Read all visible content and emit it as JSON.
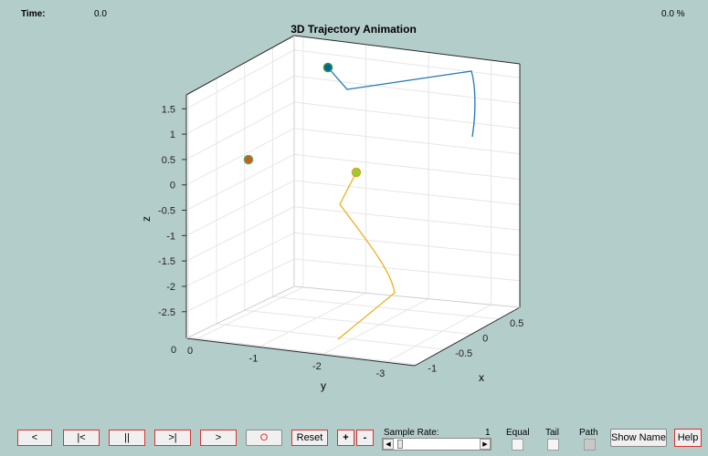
{
  "header": {
    "time_label": "Time:",
    "time_value": "0.0",
    "percent": "0.0 %"
  },
  "chart_data": {
    "type": "line",
    "title": "3D Trajectory Animation",
    "xlabel": "x",
    "ylabel": "y",
    "zlabel": "z",
    "x_ticks": [
      "0.5",
      "0",
      "-0.5",
      "-1"
    ],
    "y_ticks": [
      "0",
      "-1",
      "-2",
      "-3"
    ],
    "z_ticks": [
      "1.5",
      "1",
      "0.5",
      "0",
      "-0.5",
      "-1",
      "-1.5",
      "-2",
      "-2.5"
    ],
    "grid": true,
    "series": [
      {
        "color": "#1f77b4",
        "marker_color": "#0a5fa8"
      },
      {
        "color": "#edb120",
        "marker_color": "#9acd32"
      },
      {
        "color": "#d9531e",
        "marker_color": "#c0392b"
      }
    ]
  },
  "controls": {
    "back": "<",
    "to_start": "|<",
    "pause": "||",
    "to_end": ">|",
    "forward": ">",
    "record": "O",
    "reset": "Reset",
    "plus": "+",
    "minus": "-",
    "sample_rate_label": "Sample Rate:",
    "sample_rate_value": "1",
    "equal_label": "Equal",
    "tail_label": "Tail",
    "path_label": "Path",
    "show_name": "Show Name",
    "help": "Help",
    "slider_left": "◀",
    "slider_right": "▶"
  }
}
